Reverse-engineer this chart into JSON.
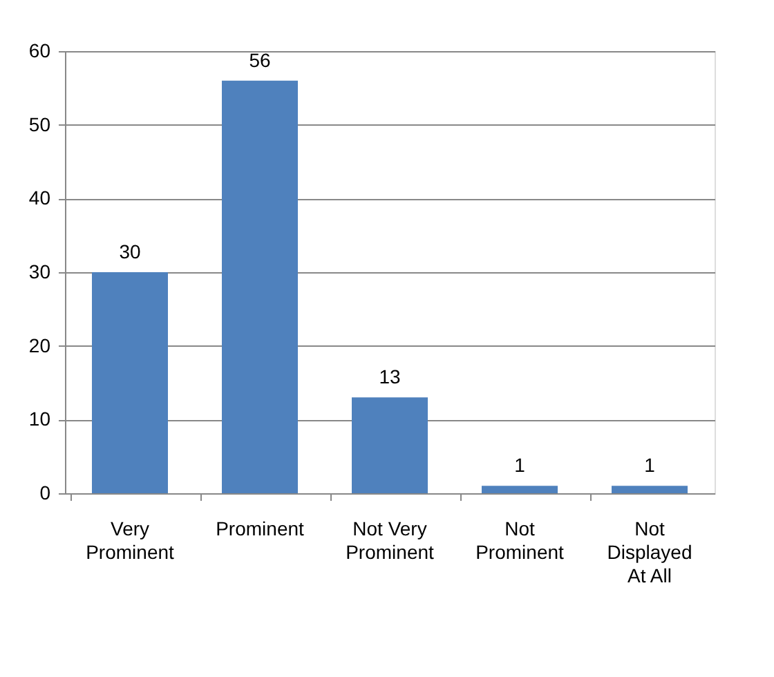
{
  "chart_data": {
    "type": "bar",
    "categories": [
      "Very Prominent",
      "Prominent",
      "Not Very Prominent",
      "Not Prominent",
      "Not Displayed At All"
    ],
    "values": [
      30,
      56,
      13,
      1,
      1
    ],
    "color": "#4f81bd",
    "ylim": [
      0,
      60
    ],
    "yticks": [
      0,
      10,
      20,
      30,
      40,
      50,
      60
    ],
    "grid": "y",
    "data_labels": true
  }
}
